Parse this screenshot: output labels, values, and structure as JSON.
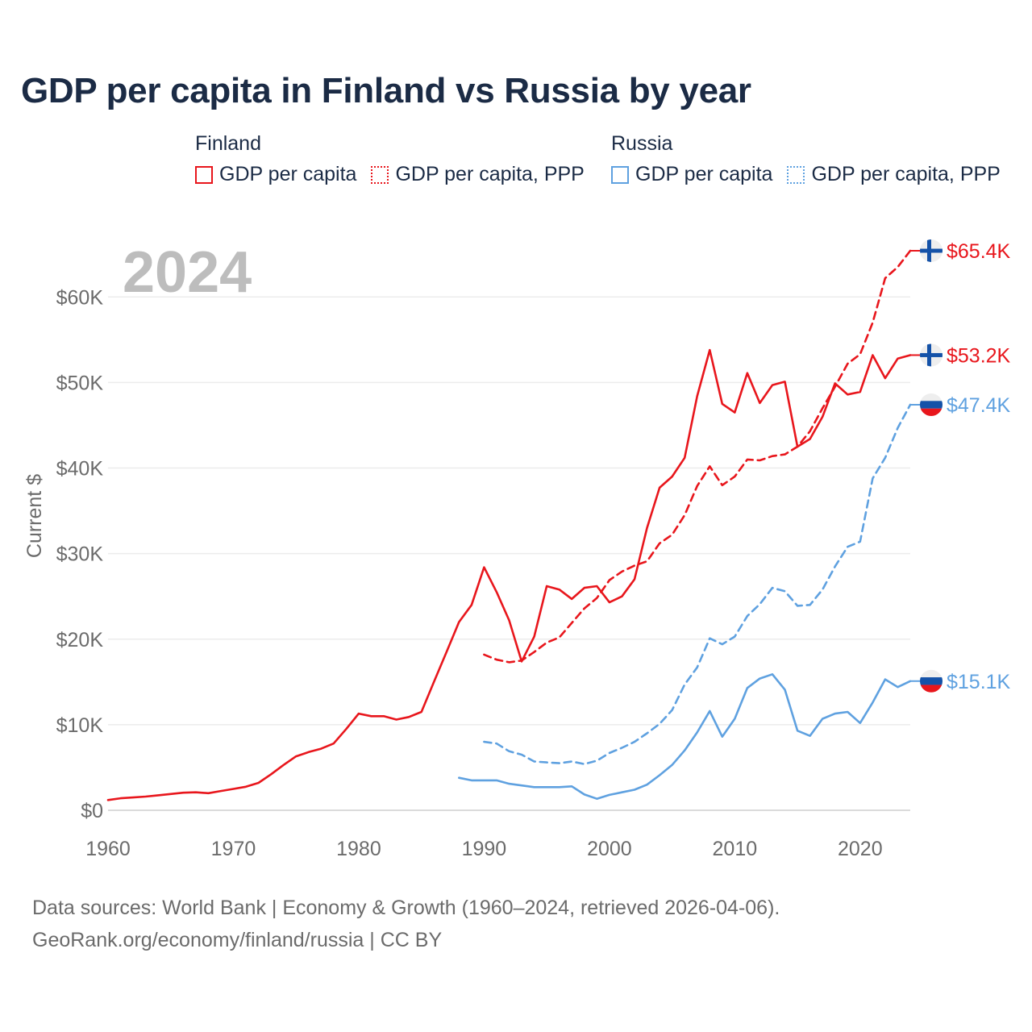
{
  "title": "GDP per capita in Finland vs Russia by year",
  "legend": {
    "groups": [
      {
        "name": "Finland",
        "color": "#e8161c",
        "items": [
          {
            "label": "GDP per capita",
            "style": "solid"
          },
          {
            "label": "GDP per capita, PPP",
            "style": "dotted"
          }
        ]
      },
      {
        "name": "Russia",
        "color": "#5fa1e0",
        "items": [
          {
            "label": "GDP per capita",
            "style": "solid"
          },
          {
            "label": "GDP per capita, PPP",
            "style": "dotted"
          }
        ]
      }
    ]
  },
  "year_watermark": "2024",
  "footer": {
    "line1": "Data sources: World Bank | Economy & Growth (1960–2024, retrieved 2026-04-06).",
    "line2": "GeoRank.org/economy/finland/russia | CC BY"
  },
  "chart_data": {
    "type": "line",
    "title": "GDP per capita in Finland vs Russia by year",
    "ylabel": "Current $",
    "xlabel": "",
    "xlim": [
      1960,
      2024
    ],
    "ylim": [
      0,
      65400
    ],
    "x_ticks": [
      1960,
      1970,
      1980,
      1990,
      2000,
      2010,
      2020
    ],
    "y_ticks": [
      {
        "value": 0,
        "label": "$0"
      },
      {
        "value": 10000,
        "label": "$10K"
      },
      {
        "value": 20000,
        "label": "$20K"
      },
      {
        "value": 30000,
        "label": "$30K"
      },
      {
        "value": 40000,
        "label": "$40K"
      },
      {
        "value": 50000,
        "label": "$50K"
      },
      {
        "value": 60000,
        "label": "$60K"
      }
    ],
    "grid": true,
    "series": [
      {
        "name": "Finland GDP per capita",
        "country": "Finland",
        "flag": "finland",
        "color": "#e8161c",
        "dash": "solid",
        "end_label": "$53.2K",
        "points": [
          [
            1960,
            1200
          ],
          [
            1961,
            1400
          ],
          [
            1962,
            1500
          ],
          [
            1963,
            1600
          ],
          [
            1964,
            1750
          ],
          [
            1965,
            1900
          ],
          [
            1966,
            2050
          ],
          [
            1967,
            2100
          ],
          [
            1968,
            2000
          ],
          [
            1969,
            2250
          ],
          [
            1970,
            2500
          ],
          [
            1971,
            2750
          ],
          [
            1972,
            3200
          ],
          [
            1973,
            4200
          ],
          [
            1974,
            5300
          ],
          [
            1975,
            6300
          ],
          [
            1976,
            6800
          ],
          [
            1977,
            7200
          ],
          [
            1978,
            7800
          ],
          [
            1979,
            9500
          ],
          [
            1980,
            11300
          ],
          [
            1981,
            11000
          ],
          [
            1982,
            11000
          ],
          [
            1983,
            10600
          ],
          [
            1984,
            10900
          ],
          [
            1985,
            11500
          ],
          [
            1986,
            15000
          ],
          [
            1987,
            18500
          ],
          [
            1988,
            22000
          ],
          [
            1989,
            24000
          ],
          [
            1990,
            28400
          ],
          [
            1991,
            25500
          ],
          [
            1992,
            22200
          ],
          [
            1993,
            17400
          ],
          [
            1994,
            20300
          ],
          [
            1995,
            26200
          ],
          [
            1996,
            25800
          ],
          [
            1997,
            24700
          ],
          [
            1998,
            26000
          ],
          [
            1999,
            26200
          ],
          [
            2000,
            24300
          ],
          [
            2001,
            25000
          ],
          [
            2002,
            27000
          ],
          [
            2003,
            33000
          ],
          [
            2004,
            37700
          ],
          [
            2005,
            39000
          ],
          [
            2006,
            41200
          ],
          [
            2007,
            48400
          ],
          [
            2008,
            53800
          ],
          [
            2009,
            47500
          ],
          [
            2010,
            46500
          ],
          [
            2011,
            51100
          ],
          [
            2012,
            47600
          ],
          [
            2013,
            49700
          ],
          [
            2014,
            50100
          ],
          [
            2015,
            42500
          ],
          [
            2016,
            43400
          ],
          [
            2017,
            46000
          ],
          [
            2018,
            49900
          ],
          [
            2019,
            48600
          ],
          [
            2020,
            48900
          ],
          [
            2021,
            53200
          ],
          [
            2022,
            50500
          ],
          [
            2023,
            52800
          ],
          [
            2024,
            53200
          ]
        ]
      },
      {
        "name": "Finland GDP per capita, PPP",
        "country": "Finland",
        "flag": "finland",
        "color": "#e8161c",
        "dash": "dashed",
        "end_label": "$65.4K",
        "points": [
          [
            1990,
            18200
          ],
          [
            1991,
            17600
          ],
          [
            1992,
            17300
          ],
          [
            1993,
            17500
          ],
          [
            1994,
            18500
          ],
          [
            1995,
            19600
          ],
          [
            1996,
            20200
          ],
          [
            1997,
            21900
          ],
          [
            1998,
            23600
          ],
          [
            1999,
            24800
          ],
          [
            2000,
            26900
          ],
          [
            2001,
            27900
          ],
          [
            2002,
            28600
          ],
          [
            2003,
            29100
          ],
          [
            2004,
            31200
          ],
          [
            2005,
            32200
          ],
          [
            2006,
            34500
          ],
          [
            2007,
            37900
          ],
          [
            2008,
            40200
          ],
          [
            2009,
            38000
          ],
          [
            2010,
            39000
          ],
          [
            2011,
            41000
          ],
          [
            2012,
            40900
          ],
          [
            2013,
            41400
          ],
          [
            2014,
            41600
          ],
          [
            2015,
            42500
          ],
          [
            2016,
            44300
          ],
          [
            2017,
            47000
          ],
          [
            2018,
            49500
          ],
          [
            2019,
            52200
          ],
          [
            2020,
            53300
          ],
          [
            2021,
            57000
          ],
          [
            2022,
            62200
          ],
          [
            2023,
            63500
          ],
          [
            2024,
            65400
          ]
        ]
      },
      {
        "name": "Russia GDP per capita",
        "country": "Russia",
        "flag": "russia",
        "color": "#5fa1e0",
        "dash": "solid",
        "end_label": "$15.1K",
        "points": [
          [
            1988,
            3800
          ],
          [
            1989,
            3500
          ],
          [
            1990,
            3500
          ],
          [
            1991,
            3500
          ],
          [
            1992,
            3100
          ],
          [
            1993,
            2900
          ],
          [
            1994,
            2700
          ],
          [
            1995,
            2700
          ],
          [
            1996,
            2700
          ],
          [
            1997,
            2800
          ],
          [
            1998,
            1850
          ],
          [
            1999,
            1350
          ],
          [
            2000,
            1800
          ],
          [
            2001,
            2100
          ],
          [
            2002,
            2400
          ],
          [
            2003,
            3000
          ],
          [
            2004,
            4100
          ],
          [
            2005,
            5300
          ],
          [
            2006,
            7000
          ],
          [
            2007,
            9100
          ],
          [
            2008,
            11600
          ],
          [
            2009,
            8600
          ],
          [
            2010,
            10700
          ],
          [
            2011,
            14300
          ],
          [
            2012,
            15400
          ],
          [
            2013,
            15900
          ],
          [
            2014,
            14100
          ],
          [
            2015,
            9300
          ],
          [
            2016,
            8700
          ],
          [
            2017,
            10700
          ],
          [
            2018,
            11300
          ],
          [
            2019,
            11500
          ],
          [
            2020,
            10200
          ],
          [
            2021,
            12600
          ],
          [
            2022,
            15300
          ],
          [
            2023,
            14400
          ],
          [
            2024,
            15100
          ]
        ]
      },
      {
        "name": "Russia GDP per capita, PPP",
        "country": "Russia",
        "flag": "russia",
        "color": "#5fa1e0",
        "dash": "dashed",
        "end_label": "$47.4K",
        "points": [
          [
            1990,
            8000
          ],
          [
            1991,
            7800
          ],
          [
            1992,
            6900
          ],
          [
            1993,
            6500
          ],
          [
            1994,
            5700
          ],
          [
            1995,
            5600
          ],
          [
            1996,
            5500
          ],
          [
            1997,
            5700
          ],
          [
            1998,
            5400
          ],
          [
            1999,
            5800
          ],
          [
            2000,
            6700
          ],
          [
            2001,
            7300
          ],
          [
            2002,
            8000
          ],
          [
            2003,
            9000
          ],
          [
            2004,
            10100
          ],
          [
            2005,
            11700
          ],
          [
            2006,
            14700
          ],
          [
            2007,
            16700
          ],
          [
            2008,
            20100
          ],
          [
            2009,
            19400
          ],
          [
            2010,
            20300
          ],
          [
            2011,
            22700
          ],
          [
            2012,
            24100
          ],
          [
            2013,
            26000
          ],
          [
            2014,
            25600
          ],
          [
            2015,
            23900
          ],
          [
            2016,
            24000
          ],
          [
            2017,
            25800
          ],
          [
            2018,
            28500
          ],
          [
            2019,
            30800
          ],
          [
            2020,
            31400
          ],
          [
            2021,
            38800
          ],
          [
            2022,
            41200
          ],
          [
            2023,
            44700
          ],
          [
            2024,
            47400
          ]
        ]
      }
    ]
  }
}
